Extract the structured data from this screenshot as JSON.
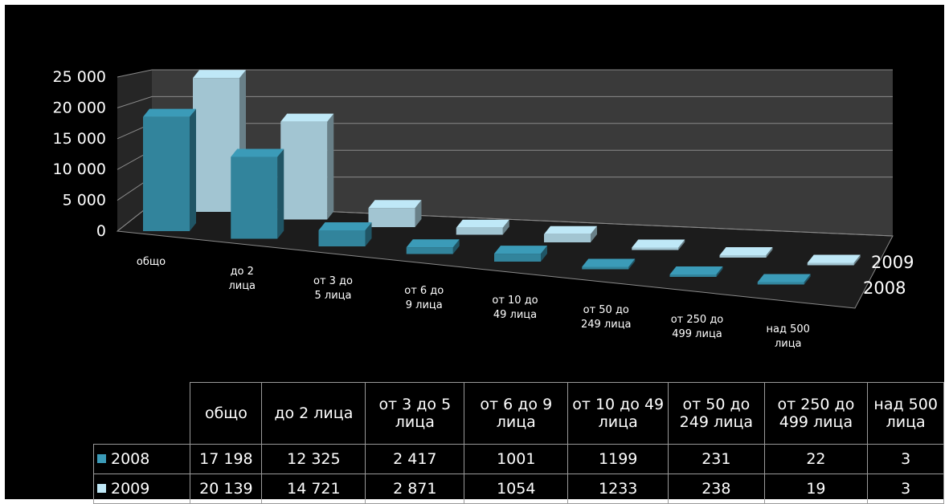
{
  "chart_data": {
    "type": "bar",
    "categories": [
      "общо",
      "до 2 лица",
      "от 3 до 5 лица",
      "от 6 до 9 лица",
      "от 10 до 49 лица",
      "от 50 до 249 лица",
      "от 250 до 499 лица",
      "над 500 лица"
    ],
    "series": [
      {
        "name": "2008",
        "values": [
          17198,
          12325,
          2417,
          1001,
          1199,
          231,
          22,
          3
        ],
        "color": "#3b9bb8"
      },
      {
        "name": "2009",
        "values": [
          20139,
          14721,
          2871,
          1054,
          1233,
          238,
          19,
          3
        ],
        "color": "#bfe8f7"
      }
    ],
    "ylim": [
      0,
      25000
    ],
    "y_ticks": [
      "0",
      "5 000",
      "10 000",
      "15 000",
      "20 000",
      "25 000"
    ],
    "grid": true,
    "style": "3d-clustered-column",
    "legend": "data-table-below"
  },
  "table": {
    "headers": [
      "общо",
      "до 2 лица",
      "от 3 до 5 лица",
      "от 6 до 9 лица",
      "от 10 до 49 лица",
      "от 50 до 249 лица",
      "от 250 до 499 лица",
      "над 500 лица"
    ],
    "rows": [
      {
        "label": "2008",
        "cells": [
          "17 198",
          "12 325",
          "2 417",
          "1001",
          "1199",
          "231",
          "22",
          "3"
        ]
      },
      {
        "label": "2009",
        "cells": [
          "20 139",
          "14 721",
          "2 871",
          "1054",
          "1233",
          "238",
          "19",
          "3"
        ]
      }
    ]
  }
}
